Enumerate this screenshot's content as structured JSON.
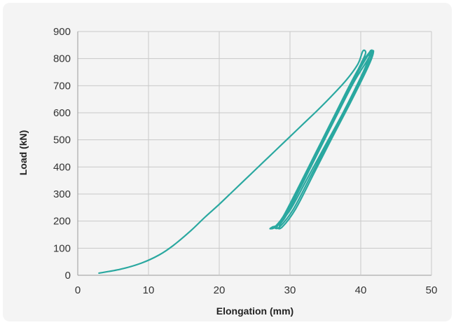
{
  "chart_data": {
    "type": "line",
    "title": "",
    "xlabel": "Elongation (mm)",
    "ylabel": "Load (kN)",
    "xlim": [
      0,
      50
    ],
    "ylim": [
      0,
      900
    ],
    "x_ticks": [
      "0",
      "10",
      "20",
      "30",
      "40",
      "50"
    ],
    "y_ticks": [
      "0",
      "100",
      "200",
      "300",
      "400",
      "500",
      "600",
      "700",
      "800",
      "900"
    ],
    "grid": true,
    "line_color": "#2aa8a0",
    "series": [
      {
        "points": [
          [
            3,
            8
          ],
          [
            6,
            22
          ],
          [
            9,
            45
          ],
          [
            11.5,
            75
          ],
          [
            13.5,
            110
          ],
          [
            16,
            165
          ],
          [
            18,
            215
          ],
          [
            20,
            262
          ],
          [
            22,
            312
          ],
          [
            24,
            362
          ],
          [
            26,
            412
          ],
          [
            28,
            462
          ],
          [
            30,
            512
          ],
          [
            32,
            562
          ],
          [
            34,
            612
          ],
          [
            36,
            665
          ],
          [
            38,
            722
          ],
          [
            39.6,
            780
          ],
          [
            40.3,
            828
          ],
          [
            40.7,
            822
          ],
          [
            40.2,
            790
          ],
          [
            38.5,
            700
          ],
          [
            36,
            565
          ],
          [
            33.5,
            430
          ],
          [
            31,
            300
          ],
          [
            28.5,
            195
          ],
          [
            27.5,
            178
          ],
          [
            27.2,
            172
          ],
          [
            28,
            180
          ],
          [
            30,
            240
          ],
          [
            32.5,
            360
          ],
          [
            35,
            480
          ],
          [
            37.5,
            600
          ],
          [
            39.8,
            720
          ],
          [
            41,
            790
          ],
          [
            41.4,
            828
          ],
          [
            41.2,
            822
          ],
          [
            40.3,
            790
          ],
          [
            38.6,
            710
          ],
          [
            36,
            575
          ],
          [
            33.5,
            445
          ],
          [
            31,
            315
          ],
          [
            29,
            215
          ],
          [
            28,
            182
          ],
          [
            27.9,
            174
          ],
          [
            28.6,
            180
          ],
          [
            30.5,
            245
          ],
          [
            33,
            370
          ],
          [
            35.5,
            495
          ],
          [
            38,
            620
          ],
          [
            40.2,
            735
          ],
          [
            41.3,
            795
          ],
          [
            41.6,
            830
          ],
          [
            41.3,
            822
          ],
          [
            40.5,
            790
          ],
          [
            38.8,
            712
          ],
          [
            36.3,
            582
          ],
          [
            33.8,
            452
          ],
          [
            31.3,
            322
          ],
          [
            29.3,
            220
          ],
          [
            28.3,
            185
          ],
          [
            28.2,
            175
          ],
          [
            28.9,
            178
          ],
          [
            30.8,
            245
          ],
          [
            33.3,
            372
          ],
          [
            35.8,
            500
          ],
          [
            38.3,
            625
          ],
          [
            40.5,
            740
          ],
          [
            41.5,
            798
          ],
          [
            41.8,
            828
          ],
          [
            41.5,
            820
          ],
          [
            40.8,
            788
          ],
          [
            39,
            712
          ],
          [
            36.5,
            585
          ],
          [
            34,
            455
          ],
          [
            31.5,
            325
          ],
          [
            29.5,
            222
          ],
          [
            28.6,
            188
          ],
          [
            28.5,
            175
          ]
        ]
      }
    ]
  }
}
